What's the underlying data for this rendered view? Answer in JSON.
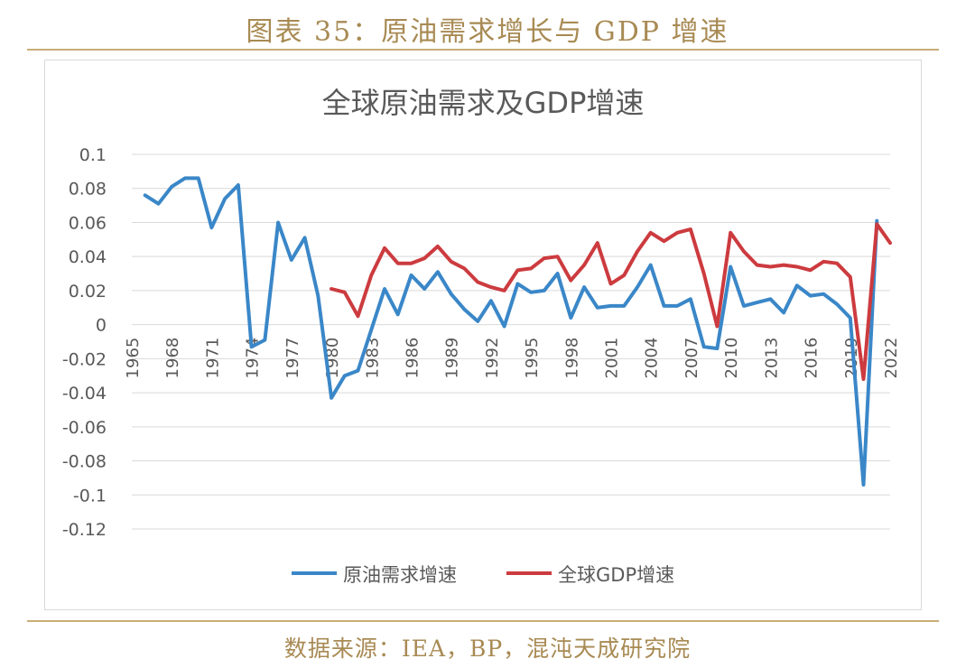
{
  "figure": {
    "title": "图表 35：原油需求增长与 GDP 增速",
    "source": "数据来源：IEA，BP，混沌天成研究院"
  },
  "colors": {
    "series_oil": "#3a87c8",
    "series_gdp": "#cc3b3f",
    "grid": "#d9d9d9",
    "text": "#595959",
    "accent": "#a88a53"
  },
  "chart_data": {
    "type": "line",
    "title": "全球原油需求及GDP增速",
    "xlabel": "",
    "ylabel": "",
    "ylim": [
      -0.12,
      0.1
    ],
    "yticks": [
      0.1,
      0.08,
      0.06,
      0.04,
      0.02,
      0,
      -0.02,
      -0.04,
      -0.06,
      -0.08,
      -0.1,
      -0.12
    ],
    "ytick_labels": [
      "0.1",
      "0.08",
      "0.06",
      "0.04",
      "0.02",
      "0",
      "-0.02",
      "-0.04",
      "-0.06",
      "-0.08",
      "-0.1",
      "-0.12"
    ],
    "xlim": [
      1965,
      2022
    ],
    "xtick_labels": [
      "1965",
      "1968",
      "1971",
      "1974",
      "1977",
      "1980",
      "1983",
      "1986",
      "1989",
      "1992",
      "1995",
      "1998",
      "2001",
      "2004",
      "2007",
      "2010",
      "2013",
      "2016",
      "2019",
      "2022"
    ],
    "grid": true,
    "legend_position": "bottom",
    "series": [
      {
        "name": "原油需求增速",
        "x": [
          1966,
          1967,
          1968,
          1969,
          1970,
          1971,
          1972,
          1973,
          1974,
          1975,
          1976,
          1977,
          1978,
          1979,
          1980,
          1981,
          1982,
          1983,
          1984,
          1985,
          1986,
          1987,
          1988,
          1989,
          1990,
          1991,
          1992,
          1993,
          1994,
          1995,
          1996,
          1997,
          1998,
          1999,
          2000,
          2001,
          2002,
          2003,
          2004,
          2005,
          2006,
          2007,
          2008,
          2009,
          2010,
          2011,
          2012,
          2013,
          2014,
          2015,
          2016,
          2017,
          2018,
          2019,
          2020,
          2021
        ],
        "values": [
          0.076,
          0.071,
          0.081,
          0.086,
          0.086,
          0.057,
          0.074,
          0.082,
          -0.013,
          -0.009,
          0.06,
          0.038,
          0.051,
          0.017,
          -0.043,
          -0.03,
          -0.027,
          -0.003,
          0.021,
          0.006,
          0.029,
          0.021,
          0.031,
          0.018,
          0.009,
          0.002,
          0.014,
          -0.001,
          0.024,
          0.019,
          0.02,
          0.03,
          0.004,
          0.022,
          0.01,
          0.011,
          0.011,
          0.022,
          0.035,
          0.011,
          0.011,
          0.015,
          -0.013,
          -0.014,
          0.034,
          0.011,
          0.013,
          0.015,
          0.007,
          0.023,
          0.017,
          0.018,
          0.012,
          0.004,
          -0.094,
          0.061
        ]
      },
      {
        "name": "全球GDP增速",
        "x": [
          1980,
          1981,
          1982,
          1983,
          1984,
          1985,
          1986,
          1987,
          1988,
          1989,
          1990,
          1991,
          1992,
          1993,
          1994,
          1995,
          1996,
          1997,
          1998,
          1999,
          2000,
          2001,
          2002,
          2003,
          2004,
          2005,
          2006,
          2007,
          2008,
          2009,
          2010,
          2011,
          2012,
          2013,
          2014,
          2015,
          2016,
          2017,
          2018,
          2019,
          2020,
          2021,
          2022
        ],
        "values": [
          0.021,
          0.019,
          0.005,
          0.029,
          0.045,
          0.036,
          0.036,
          0.039,
          0.046,
          0.037,
          0.033,
          0.025,
          0.022,
          0.02,
          0.032,
          0.033,
          0.039,
          0.04,
          0.026,
          0.035,
          0.048,
          0.024,
          0.029,
          0.043,
          0.054,
          0.049,
          0.054,
          0.056,
          0.03,
          -0.001,
          0.054,
          0.043,
          0.035,
          0.034,
          0.035,
          0.034,
          0.032,
          0.037,
          0.036,
          0.028,
          -0.032,
          0.059,
          0.048
        ]
      }
    ]
  }
}
